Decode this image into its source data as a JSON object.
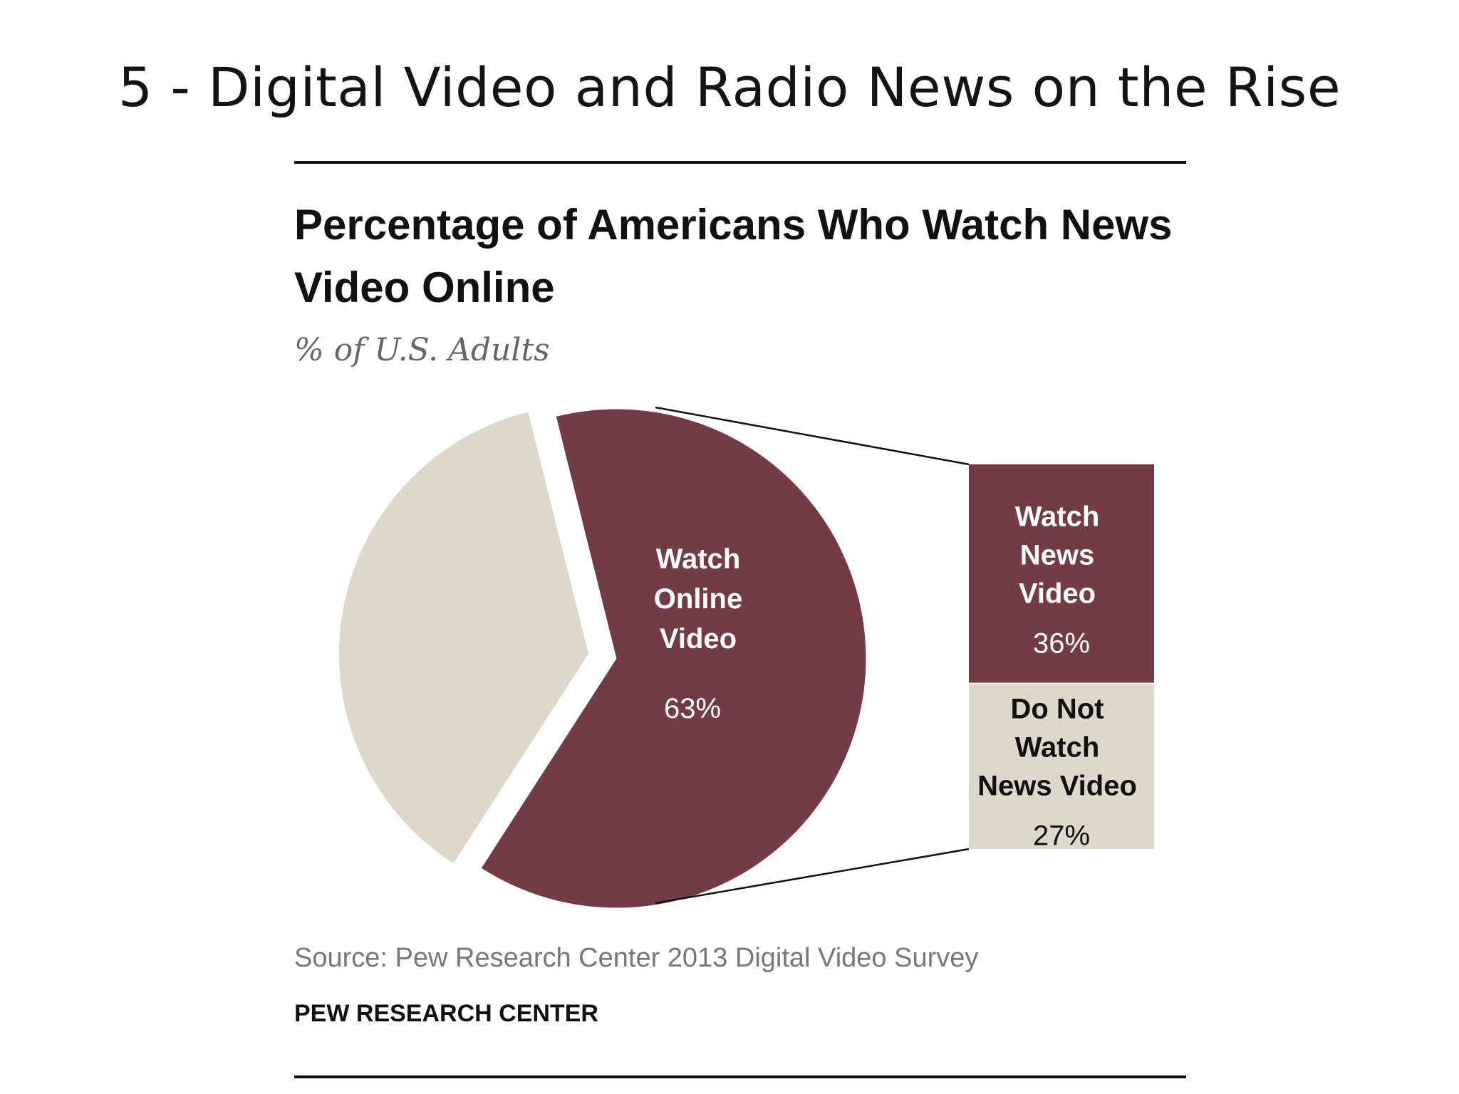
{
  "slide": {
    "title": "5 - Digital Video and Radio News on the Rise"
  },
  "chart_data": {
    "type": "pie",
    "title": "Percentage of Americans Who Watch News Video Online",
    "subtitle": "% of U.S. Adults",
    "slices": [
      {
        "label_lines": [
          "Watch",
          "Online",
          "Video"
        ],
        "value": 63,
        "value_label": "63%",
        "color": "#733b45"
      },
      {
        "label_lines": [],
        "value": 37,
        "value_label": "",
        "color": "#ddd8c9"
      }
    ],
    "breakdown": {
      "of_slice": 0,
      "segments": [
        {
          "label_lines": [
            "Watch",
            "News",
            "Video"
          ],
          "value": 36,
          "value_label": "36%",
          "color": "#733b45",
          "text_color": "#ffffff"
        },
        {
          "label_lines": [
            "Do Not",
            "Watch",
            "News Video"
          ],
          "value": 27,
          "value_label": "27%",
          "color": "#ddd8c9",
          "text_color": "#111111"
        }
      ]
    },
    "source": "Source: Pew Research Center 2013 Digital Video Survey",
    "credit": "PEW RESEARCH CENTER"
  }
}
